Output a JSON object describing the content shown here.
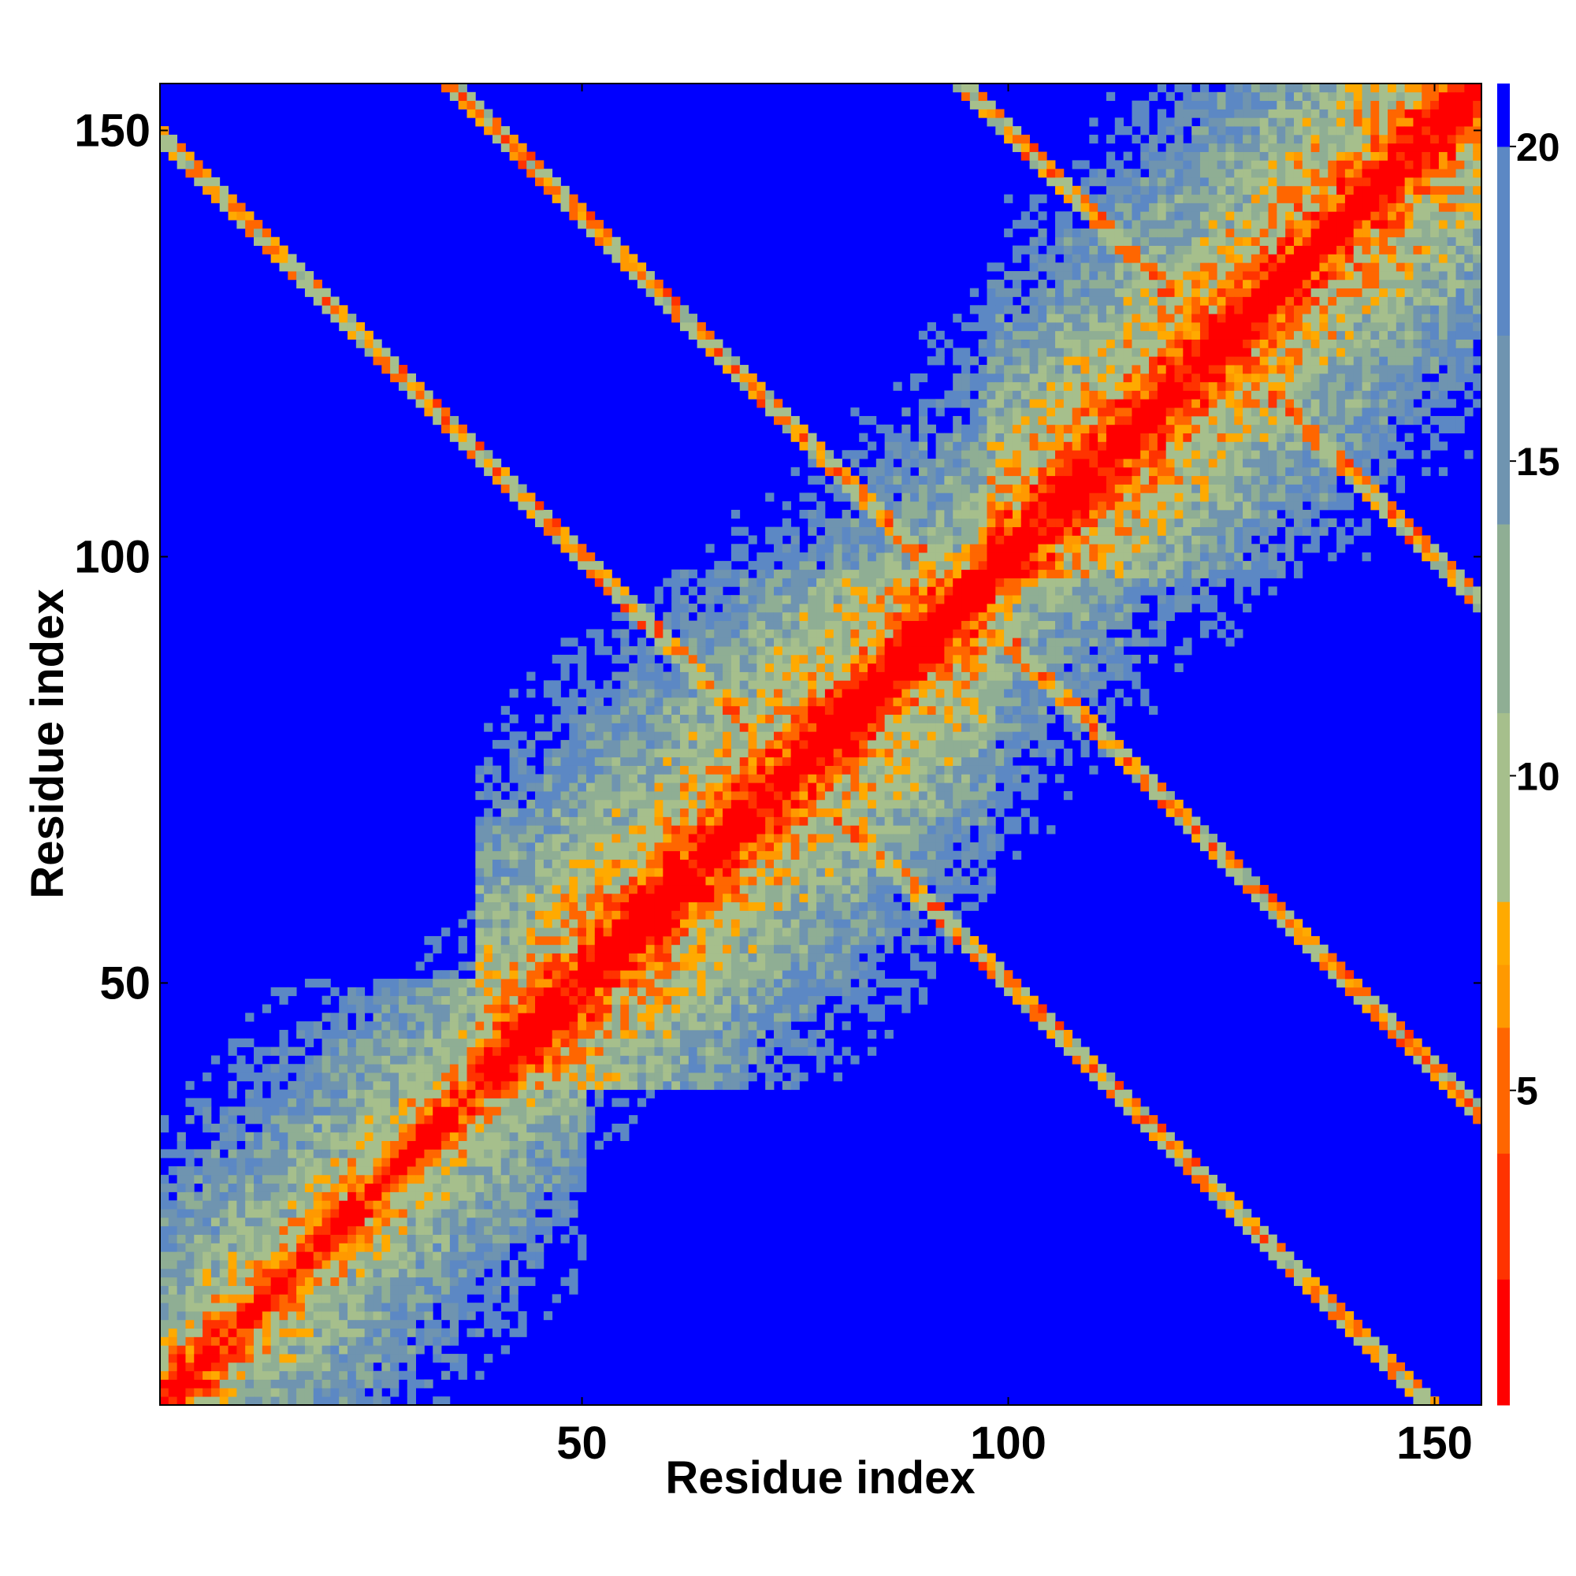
{
  "chart_data": {
    "type": "heatmap",
    "title": "",
    "xlabel": "Residue index",
    "ylabel": "Residue index",
    "xlim": [
      1,
      155
    ],
    "ylim": [
      1,
      155
    ],
    "x_ticks": [
      50,
      100,
      150
    ],
    "y_ticks": [
      50,
      100,
      150
    ],
    "n_residues": 155,
    "colorbar": {
      "range": [
        0,
        21
      ],
      "ticks": [
        5,
        10,
        15,
        20
      ],
      "colors": [
        "#ff0000",
        "#ff3300",
        "#ff6600",
        "#ff9900",
        "#ffaa00",
        "#a6bf8c",
        "#8fae94",
        "#6f94b0",
        "#5c88c4",
        "#0000ff"
      ],
      "bounds": [
        0,
        2,
        4,
        6,
        7,
        8,
        11,
        14,
        17,
        20,
        21
      ]
    },
    "description_of_values": "Symmetric residue-residue distance map; near-diagonal distances are small (red), distant residue pairs saturate at the maximum (blue).",
    "blocks": [
      {
        "x_range": [
          1,
          38
        ],
        "y_range": [
          1,
          38
        ],
        "level": "near"
      },
      {
        "x_range": [
          38,
          98
        ],
        "y_range": [
          38,
          98
        ],
        "level": "mid"
      },
      {
        "x_range": [
          98,
          155
        ],
        "y_range": [
          98,
          155
        ],
        "level": "mid"
      },
      {
        "x_range": [
          1,
          38
        ],
        "y_range": [
          50,
          155
        ],
        "level": "far"
      },
      {
        "x_range": [
          50,
          155
        ],
        "y_range": [
          1,
          38
        ],
        "level": "far"
      }
    ],
    "grid": false,
    "legend": "colorbar-right"
  }
}
